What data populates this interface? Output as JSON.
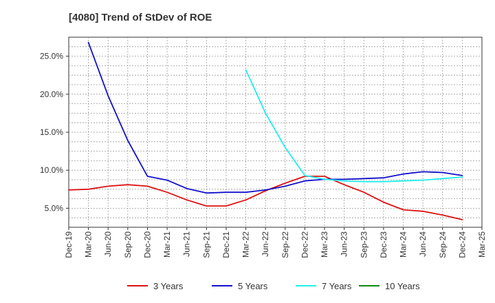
{
  "chart_data": {
    "type": "line",
    "title": "[4080]  Trend of StDev of ROE",
    "xlabel": "",
    "ylabel": "",
    "x_ticks": [
      "Dec-19",
      "Mar-20",
      "Jun-20",
      "Sep-20",
      "Dec-20",
      "Mar-21",
      "Jun-21",
      "Sep-21",
      "Dec-21",
      "Mar-22",
      "Jun-22",
      "Sep-22",
      "Dec-22",
      "Mar-23",
      "Jun-23",
      "Sep-23",
      "Dec-23",
      "Mar-24",
      "Jun-24",
      "Sep-24",
      "Dec-24",
      "Mar-25"
    ],
    "y_ticks": [
      "5.0%",
      "10.0%",
      "15.0%",
      "20.0%",
      "25.0%"
    ],
    "y_tick_values": [
      5,
      10,
      15,
      20,
      25
    ],
    "ylim": [
      2.5,
      27.5
    ],
    "grid": true,
    "legend_position": "bottom",
    "series": [
      {
        "name": "3 Years",
        "color": "#dd1111",
        "x": [
          "Dec-19",
          "Mar-20",
          "Jun-20",
          "Sep-20",
          "Dec-20",
          "Mar-21",
          "Jun-21",
          "Sep-21",
          "Dec-21",
          "Mar-22",
          "Jun-22",
          "Sep-22",
          "Dec-22",
          "Mar-23",
          "Jun-23",
          "Sep-23",
          "Dec-23",
          "Mar-24",
          "Jun-24",
          "Sep-24",
          "Dec-24"
        ],
        "values": [
          7.4,
          7.5,
          7.9,
          8.1,
          7.9,
          7.1,
          6.1,
          5.3,
          5.3,
          6.1,
          7.3,
          8.3,
          9.2,
          9.2,
          8.1,
          7.1,
          5.8,
          4.8,
          4.6,
          4.1,
          3.5
        ]
      },
      {
        "name": "5 Years",
        "color": "#1111cc",
        "x": [
          "Mar-20",
          "Jun-20",
          "Sep-20",
          "Dec-20",
          "Mar-21",
          "Jun-21",
          "Sep-21",
          "Dec-21",
          "Mar-22",
          "Jun-22",
          "Sep-22",
          "Dec-22",
          "Mar-23",
          "Jun-23",
          "Sep-23",
          "Dec-23",
          "Mar-24",
          "Jun-24",
          "Sep-24",
          "Dec-24"
        ],
        "values": [
          26.8,
          19.8,
          13.9,
          9.2,
          8.7,
          7.6,
          7.0,
          7.1,
          7.1,
          7.4,
          7.9,
          8.6,
          8.8,
          8.8,
          8.9,
          9.0,
          9.5,
          9.8,
          9.7,
          9.3
        ]
      },
      {
        "name": "7 Years",
        "color": "#22eeee",
        "x": [
          "Mar-22",
          "Jun-22",
          "Sep-22",
          "Dec-22",
          "Mar-23",
          "Jun-23",
          "Sep-23",
          "Dec-23",
          "Mar-24",
          "Jun-24",
          "Sep-24",
          "Dec-24"
        ],
        "values": [
          23.2,
          17.5,
          13.0,
          9.3,
          8.8,
          8.6,
          8.5,
          8.5,
          8.6,
          8.7,
          8.9,
          9.1
        ]
      },
      {
        "name": "10 Years",
        "color": "#118811",
        "x": [],
        "values": []
      }
    ]
  }
}
